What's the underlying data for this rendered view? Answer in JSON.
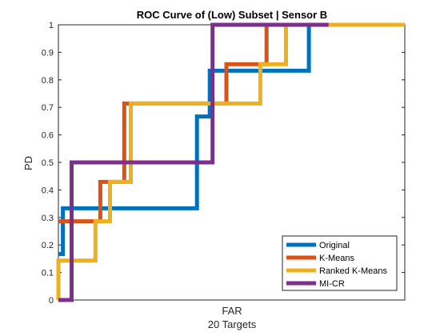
{
  "chart_data": {
    "type": "line",
    "title": "ROC Curve of (Low) Subset | Sensor B",
    "xlabel": "FAR",
    "xlabel2": "20 Targets",
    "ylabel": "PD",
    "ylim": [
      0,
      1
    ],
    "xlim": [
      0,
      1
    ],
    "yticks": [
      "0",
      "0.1",
      "0.2",
      "0.3",
      "0.4",
      "0.5",
      "0.6",
      "0.7",
      "0.8",
      "0.9",
      "1"
    ],
    "grid": false,
    "legend_position": "bottom-right",
    "series": [
      {
        "name": "Original",
        "color": "#0072BD",
        "x": [
          0.0,
          0.013,
          0.013,
          0.4,
          0.4,
          0.437,
          0.437,
          0.465,
          0.465,
          0.723,
          0.723,
          1.0
        ],
        "y": [
          0.167,
          0.167,
          0.333,
          0.333,
          0.667,
          0.667,
          0.833,
          0.833,
          0.833,
          0.833,
          1.0,
          1.0
        ]
      },
      {
        "name": "K-Means",
        "color": "#D95319",
        "x": [
          0.0,
          0.0,
          0.121,
          0.121,
          0.19,
          0.19,
          0.485,
          0.485,
          0.601,
          0.601,
          1.0
        ],
        "y": [
          0.286,
          0.286,
          0.286,
          0.429,
          0.429,
          0.714,
          0.714,
          0.857,
          0.857,
          1.0,
          1.0
        ]
      },
      {
        "name": "Ranked K-Means",
        "color": "#EDB120",
        "x": [
          0.0,
          0.0,
          0.107,
          0.107,
          0.149,
          0.149,
          0.209,
          0.209,
          0.583,
          0.583,
          0.657,
          0.657,
          1.0
        ],
        "y": [
          0.0,
          0.143,
          0.143,
          0.286,
          0.286,
          0.429,
          0.429,
          0.714,
          0.714,
          0.857,
          0.857,
          1.0,
          1.0
        ]
      },
      {
        "name": "MI-CR",
        "color": "#7E2F8E",
        "x": [
          0.0,
          0.038,
          0.038,
          0.445,
          0.445,
          0.78
        ],
        "y": [
          0.0,
          0.0,
          0.5,
          0.5,
          1.0,
          1.0
        ]
      }
    ]
  }
}
